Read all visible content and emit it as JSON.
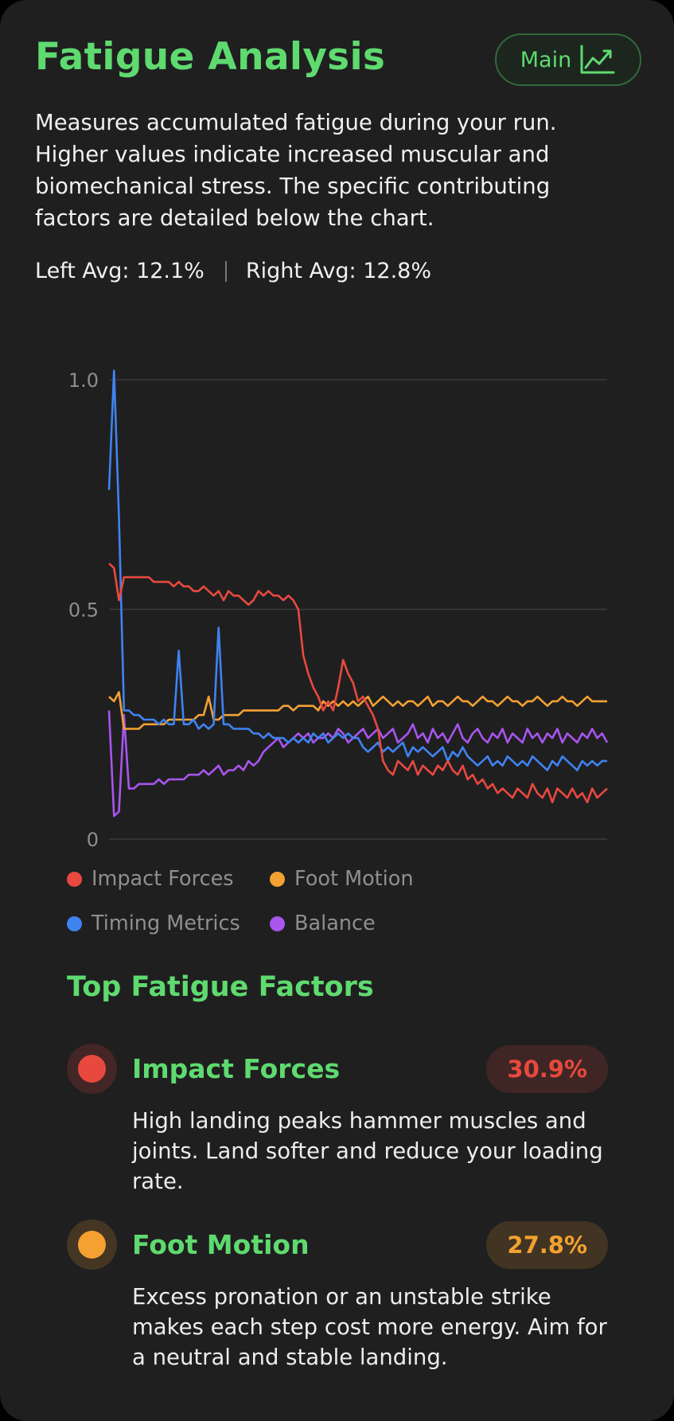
{
  "header": {
    "title": "Fatigue Analysis",
    "main_button_label": "Main",
    "main_button_icon": "trend-chart-icon"
  },
  "description": "Measures accumulated fatigue during your run. Higher values indicate increased muscular and biomechanical stress. The specific contributing factors are detailed below the chart.",
  "averages": {
    "left": "Left Avg: 12.1%",
    "right": "Right Avg: 12.8%"
  },
  "colors": {
    "accent": "#5fda6f",
    "impact": "#e8493f",
    "foot": "#f4a132",
    "timing": "#3f83f0",
    "balance": "#a955ee"
  },
  "chart_data": {
    "type": "line",
    "ylim": [
      0,
      1.0
    ],
    "yticks": [
      "0",
      "0.5",
      "1.0"
    ],
    "grid": true,
    "legend_position": "bottom",
    "x": [
      0,
      1,
      2,
      3,
      4,
      5,
      6,
      7,
      8,
      9,
      10,
      11,
      12,
      13,
      14,
      15,
      16,
      17,
      18,
      19,
      20,
      21,
      22,
      23,
      24,
      25,
      26,
      27,
      28,
      29,
      30,
      31,
      32,
      33,
      34,
      35,
      36,
      37,
      38,
      39,
      40,
      41,
      42,
      43,
      44,
      45,
      46,
      47,
      48,
      49,
      50,
      51,
      52,
      53,
      54,
      55,
      56,
      57,
      58,
      59,
      60,
      61,
      62,
      63,
      64,
      65,
      66,
      67,
      68,
      69,
      70,
      71,
      72,
      73,
      74,
      75,
      76,
      77,
      78,
      79,
      80,
      81,
      82,
      83,
      84,
      85,
      86,
      87,
      88,
      89,
      90,
      91,
      92,
      93,
      94,
      95,
      96,
      97,
      98,
      99,
      100
    ],
    "series": [
      {
        "name": "Impact Forces",
        "color": "#e8493f",
        "values": [
          0.6,
          0.59,
          0.52,
          0.57,
          0.57,
          0.57,
          0.57,
          0.57,
          0.57,
          0.56,
          0.56,
          0.56,
          0.56,
          0.55,
          0.56,
          0.55,
          0.55,
          0.54,
          0.54,
          0.55,
          0.54,
          0.53,
          0.54,
          0.52,
          0.54,
          0.53,
          0.53,
          0.52,
          0.51,
          0.52,
          0.54,
          0.53,
          0.54,
          0.53,
          0.53,
          0.52,
          0.53,
          0.52,
          0.5,
          0.4,
          0.36,
          0.33,
          0.31,
          0.28,
          0.3,
          0.28,
          0.33,
          0.39,
          0.36,
          0.34,
          0.3,
          0.31,
          0.29,
          0.27,
          0.24,
          0.17,
          0.15,
          0.14,
          0.17,
          0.16,
          0.15,
          0.17,
          0.14,
          0.16,
          0.15,
          0.14,
          0.16,
          0.15,
          0.17,
          0.15,
          0.14,
          0.16,
          0.13,
          0.14,
          0.12,
          0.13,
          0.11,
          0.12,
          0.1,
          0.11,
          0.1,
          0.09,
          0.11,
          0.1,
          0.09,
          0.12,
          0.1,
          0.09,
          0.11,
          0.08,
          0.11,
          0.1,
          0.09,
          0.11,
          0.09,
          0.1,
          0.08,
          0.11,
          0.09,
          0.1,
          0.11
        ]
      },
      {
        "name": "Foot Motion",
        "color": "#f4a132",
        "values": [
          0.31,
          0.3,
          0.32,
          0.24,
          0.24,
          0.24,
          0.24,
          0.25,
          0.25,
          0.25,
          0.25,
          0.25,
          0.26,
          0.26,
          0.26,
          0.26,
          0.26,
          0.26,
          0.27,
          0.27,
          0.31,
          0.26,
          0.26,
          0.27,
          0.27,
          0.27,
          0.27,
          0.28,
          0.28,
          0.28,
          0.28,
          0.28,
          0.28,
          0.28,
          0.28,
          0.29,
          0.29,
          0.28,
          0.29,
          0.29,
          0.29,
          0.29,
          0.28,
          0.3,
          0.29,
          0.3,
          0.29,
          0.3,
          0.29,
          0.3,
          0.29,
          0.3,
          0.31,
          0.29,
          0.3,
          0.31,
          0.3,
          0.29,
          0.3,
          0.29,
          0.3,
          0.3,
          0.29,
          0.3,
          0.31,
          0.29,
          0.3,
          0.3,
          0.29,
          0.3,
          0.31,
          0.3,
          0.3,
          0.29,
          0.3,
          0.31,
          0.3,
          0.3,
          0.29,
          0.3,
          0.31,
          0.3,
          0.3,
          0.29,
          0.3,
          0.3,
          0.31,
          0.3,
          0.29,
          0.3,
          0.3,
          0.31,
          0.3,
          0.3,
          0.29,
          0.3,
          0.31,
          0.3,
          0.3,
          0.3,
          0.3
        ]
      },
      {
        "name": "Timing Metrics",
        "color": "#3f83f0",
        "values": [
          0.76,
          1.02,
          0.7,
          0.28,
          0.28,
          0.27,
          0.27,
          0.26,
          0.26,
          0.26,
          0.25,
          0.26,
          0.25,
          0.25,
          0.41,
          0.25,
          0.25,
          0.26,
          0.24,
          0.25,
          0.24,
          0.25,
          0.46,
          0.25,
          0.25,
          0.24,
          0.24,
          0.24,
          0.24,
          0.23,
          0.23,
          0.22,
          0.23,
          0.22,
          0.22,
          0.22,
          0.21,
          0.22,
          0.21,
          0.22,
          0.21,
          0.23,
          0.22,
          0.23,
          0.21,
          0.22,
          0.23,
          0.22,
          0.23,
          0.22,
          0.22,
          0.2,
          0.19,
          0.2,
          0.21,
          0.19,
          0.2,
          0.19,
          0.2,
          0.21,
          0.18,
          0.2,
          0.19,
          0.2,
          0.19,
          0.18,
          0.19,
          0.2,
          0.17,
          0.19,
          0.18,
          0.2,
          0.18,
          0.17,
          0.16,
          0.17,
          0.18,
          0.16,
          0.17,
          0.16,
          0.18,
          0.17,
          0.16,
          0.17,
          0.16,
          0.18,
          0.17,
          0.16,
          0.15,
          0.17,
          0.16,
          0.18,
          0.17,
          0.16,
          0.15,
          0.17,
          0.16,
          0.17,
          0.16,
          0.17,
          0.17
        ]
      },
      {
        "name": "Balance",
        "color": "#a955ee",
        "values": [
          0.28,
          0.05,
          0.06,
          0.27,
          0.11,
          0.11,
          0.12,
          0.12,
          0.12,
          0.12,
          0.13,
          0.12,
          0.13,
          0.13,
          0.13,
          0.13,
          0.14,
          0.14,
          0.14,
          0.15,
          0.14,
          0.15,
          0.16,
          0.14,
          0.15,
          0.15,
          0.16,
          0.15,
          0.17,
          0.16,
          0.17,
          0.19,
          0.2,
          0.21,
          0.22,
          0.2,
          0.21,
          0.22,
          0.23,
          0.22,
          0.23,
          0.21,
          0.22,
          0.22,
          0.23,
          0.22,
          0.24,
          0.23,
          0.21,
          0.22,
          0.23,
          0.24,
          0.22,
          0.23,
          0.24,
          0.22,
          0.23,
          0.24,
          0.21,
          0.22,
          0.23,
          0.25,
          0.22,
          0.23,
          0.21,
          0.24,
          0.22,
          0.23,
          0.21,
          0.23,
          0.25,
          0.22,
          0.21,
          0.23,
          0.24,
          0.22,
          0.21,
          0.23,
          0.22,
          0.24,
          0.21,
          0.23,
          0.22,
          0.21,
          0.24,
          0.22,
          0.23,
          0.21,
          0.23,
          0.22,
          0.24,
          0.21,
          0.23,
          0.22,
          0.21,
          0.23,
          0.22,
          0.24,
          0.22,
          0.23,
          0.21
        ]
      }
    ]
  },
  "legend": [
    {
      "label": "Impact Forces",
      "color": "#e8493f"
    },
    {
      "label": "Foot Motion",
      "color": "#f4a132"
    },
    {
      "label": "Timing Metrics",
      "color": "#3f83f0"
    },
    {
      "label": "Balance",
      "color": "#a955ee"
    }
  ],
  "factors_section": {
    "title": "Top Fatigue Factors",
    "items": [
      {
        "name": "Impact Forces",
        "percent": "30.9%",
        "color": "#e8493f",
        "description": "High landing peaks hammer muscles and joints. Land softer and reduce your loading rate."
      },
      {
        "name": "Foot Motion",
        "percent": "27.8%",
        "color": "#f4a132",
        "description": "Excess pronation or an unstable strike makes each step cost more energy. Aim for a neutral and stable landing."
      }
    ]
  }
}
